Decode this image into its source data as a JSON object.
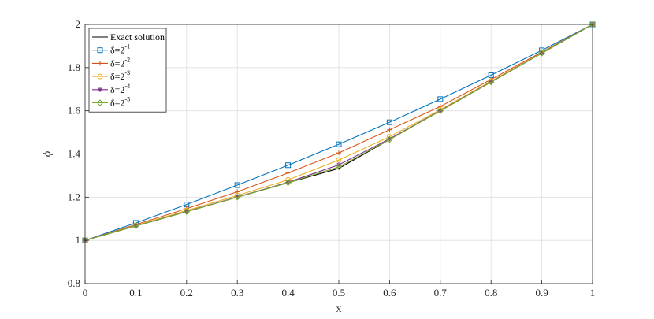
{
  "chart_data": {
    "type": "line",
    "xlabel": "x",
    "ylabel": "ϕ",
    "xlim": [
      0,
      1
    ],
    "ylim": [
      0.8,
      2
    ],
    "grid": true,
    "legend_position": "top-left",
    "x": [
      0,
      0.1,
      0.2,
      0.3,
      0.4,
      0.5,
      0.6,
      0.7,
      0.8,
      0.9,
      1
    ],
    "xticks": [
      "0",
      "0.1",
      "0.2",
      "0.3",
      "0.4",
      "0.5",
      "0.6",
      "0.7",
      "0.8",
      "0.9",
      "1"
    ],
    "yticks": [
      "0.8",
      "1",
      "1.2",
      "1.4",
      "1.6",
      "1.8",
      "2"
    ],
    "series": [
      {
        "name": "Exact solution",
        "label_base": "Exact solution",
        "label_exp": "",
        "color": "#000000",
        "marker": "none",
        "values": [
          1.0,
          1.067,
          1.133,
          1.2,
          1.267,
          1.333,
          1.467,
          1.6,
          1.733,
          1.867,
          2.0
        ]
      },
      {
        "name": "δ=2^-1",
        "label_base": "δ=2",
        "label_exp": "-1",
        "color": "#0072BD",
        "marker": "square",
        "values": [
          1.0,
          1.081,
          1.166,
          1.256,
          1.348,
          1.445,
          1.547,
          1.654,
          1.765,
          1.88,
          2.0
        ]
      },
      {
        "name": "δ=2^-2",
        "label_base": "δ=2",
        "label_exp": "-2",
        "color": "#D95319",
        "marker": "plus",
        "values": [
          1.0,
          1.073,
          1.147,
          1.225,
          1.312,
          1.405,
          1.512,
          1.62,
          1.745,
          1.872,
          2.0
        ]
      },
      {
        "name": "δ=2^-3",
        "label_base": "δ=2",
        "label_exp": "-3",
        "color": "#EDB120",
        "marker": "circle",
        "values": [
          1.0,
          1.069,
          1.138,
          1.208,
          1.28,
          1.372,
          1.48,
          1.605,
          1.737,
          1.868,
          2.0
        ]
      },
      {
        "name": "δ=2^-4",
        "label_base": "δ=2",
        "label_exp": "-4",
        "color": "#7E2F8E",
        "marker": "star",
        "values": [
          1.0,
          1.067,
          1.134,
          1.201,
          1.269,
          1.35,
          1.47,
          1.601,
          1.734,
          1.867,
          2.0
        ]
      },
      {
        "name": "δ=2^-5",
        "label_base": "δ=2",
        "label_exp": "-5",
        "color": "#77AC30",
        "marker": "diamond",
        "values": [
          1.0,
          1.067,
          1.133,
          1.2,
          1.267,
          1.34,
          1.467,
          1.6,
          1.733,
          1.867,
          2.0
        ]
      }
    ]
  }
}
